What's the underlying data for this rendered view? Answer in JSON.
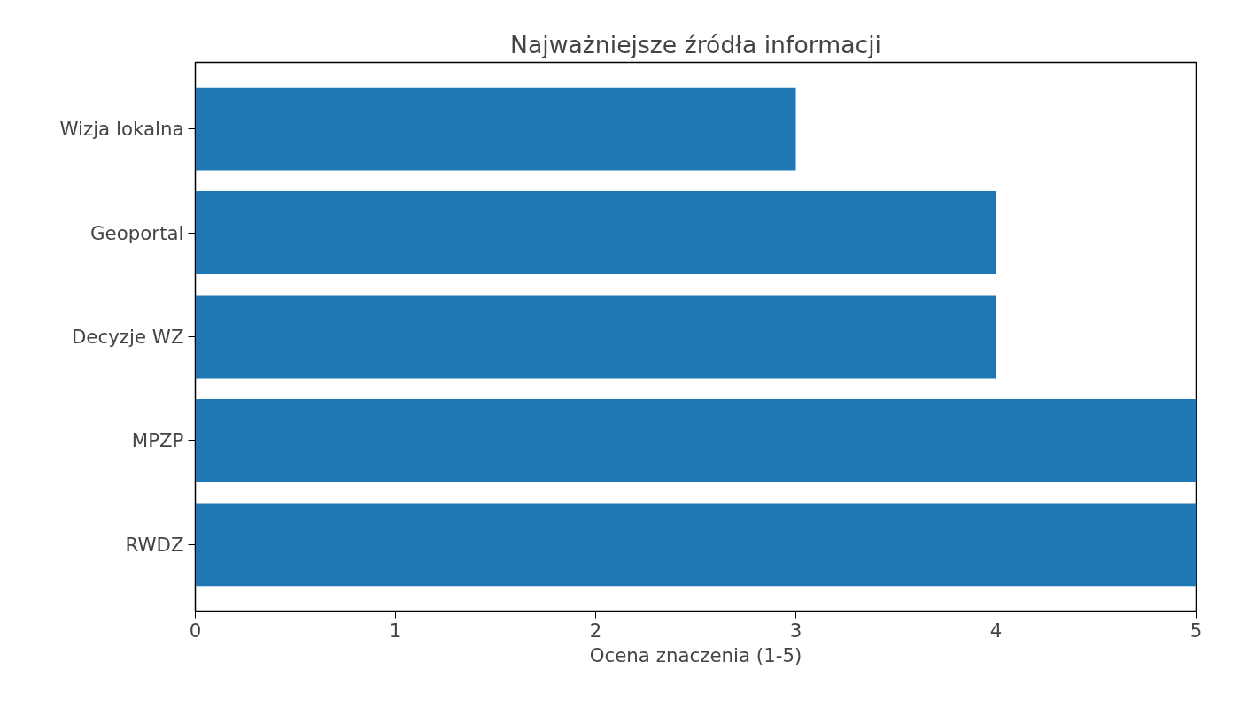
{
  "chart_data": {
    "type": "bar",
    "orientation": "horizontal",
    "title": "Najważniejsze źródła informacji",
    "xlabel": "Ocena znaczenia (1-5)",
    "categories": [
      "Wizja lokalna",
      "Geoportal",
      "Decyzje WZ",
      "MPZP",
      "RWDZ"
    ],
    "values": [
      3,
      4,
      4,
      5,
      5
    ],
    "color": "#1f77b4",
    "xlim": [
      0,
      5
    ],
    "xticks": [
      0,
      1,
      2,
      3,
      4,
      5
    ],
    "grid": false
  }
}
